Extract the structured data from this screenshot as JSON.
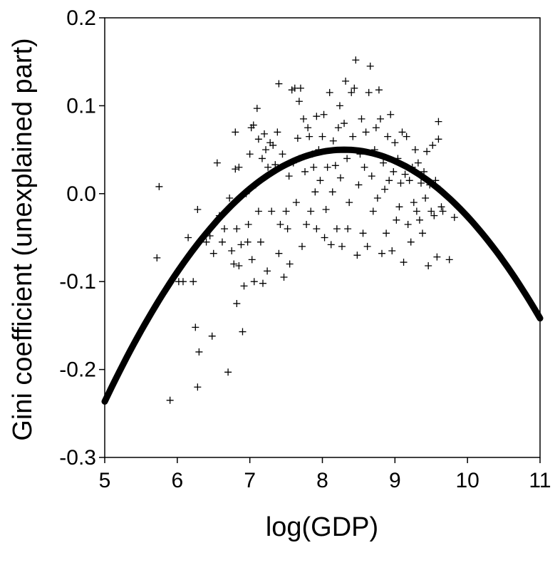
{
  "chart_data": {
    "type": "scatter",
    "xlabel": "log(GDP)",
    "ylabel": "Gini coefficient (unexplained part)",
    "xlim": [
      5,
      11
    ],
    "ylim": [
      -0.3,
      0.2
    ],
    "x_ticks": [
      5,
      6,
      7,
      8,
      9,
      10,
      11
    ],
    "y_ticks": [
      0.2,
      0.1,
      0.0,
      -0.1,
      -0.2,
      -0.3
    ],
    "x_tick_labels": [
      "5",
      "6",
      "7",
      "8",
      "9",
      "10",
      "11"
    ],
    "y_tick_labels": [
      "0.2",
      "0.1",
      "0.0",
      "-0.1",
      "-0.2",
      "-0.3"
    ],
    "grid": false,
    "legend": "none",
    "fit_curve": {
      "type": "quadratic",
      "vertex_x": 8.3,
      "vertex_y": 0.05,
      "a": -0.0263,
      "color": "#000000"
    },
    "series": [
      {
        "marker": "+",
        "points": [
          [
            5.75,
            0.008
          ],
          [
            5.72,
            -0.073
          ],
          [
            5.9,
            -0.235
          ],
          [
            6.02,
            -0.1
          ],
          [
            6.08,
            -0.1
          ],
          [
            6.15,
            -0.05
          ],
          [
            6.22,
            -0.1
          ],
          [
            6.25,
            -0.152
          ],
          [
            6.28,
            -0.018
          ],
          [
            6.3,
            -0.18
          ],
          [
            6.28,
            -0.22
          ],
          [
            6.4,
            -0.055
          ],
          [
            6.45,
            -0.048
          ],
          [
            6.5,
            -0.068
          ],
          [
            6.48,
            -0.162
          ],
          [
            6.55,
            0.035
          ],
          [
            6.58,
            -0.025
          ],
          [
            6.62,
            -0.055
          ],
          [
            6.65,
            -0.04
          ],
          [
            6.7,
            -0.203
          ],
          [
            6.72,
            -0.005
          ],
          [
            6.75,
            -0.065
          ],
          [
            6.78,
            -0.08
          ],
          [
            6.8,
            0.028
          ],
          [
            6.8,
            0.07
          ],
          [
            6.82,
            -0.125
          ],
          [
            6.82,
            -0.04
          ],
          [
            6.85,
            0.03
          ],
          [
            6.85,
            -0.082
          ],
          [
            6.88,
            -0.058
          ],
          [
            6.9,
            -0.157
          ],
          [
            6.92,
            -0.105
          ],
          [
            6.95,
            0.0
          ],
          [
            6.97,
            -0.055
          ],
          [
            6.98,
            -0.035
          ],
          [
            7.0,
            0.045
          ],
          [
            7.02,
            0.075
          ],
          [
            7.03,
            -0.075
          ],
          [
            7.05,
            0.078
          ],
          [
            7.06,
            -0.1
          ],
          [
            7.08,
            0.01
          ],
          [
            7.1,
            0.097
          ],
          [
            7.12,
            0.062
          ],
          [
            7.12,
            -0.02
          ],
          [
            7.15,
            -0.055
          ],
          [
            7.17,
            0.04
          ],
          [
            7.18,
            -0.102
          ],
          [
            7.2,
            0.068
          ],
          [
            7.22,
            0.05
          ],
          [
            7.24,
            -0.088
          ],
          [
            7.25,
            0.03
          ],
          [
            7.28,
            0.058
          ],
          [
            7.3,
            -0.02
          ],
          [
            7.32,
            0.055
          ],
          [
            7.35,
            0.033
          ],
          [
            7.38,
            0.07
          ],
          [
            7.4,
            -0.068
          ],
          [
            7.4,
            0.125
          ],
          [
            7.42,
            -0.035
          ],
          [
            7.45,
            0.045
          ],
          [
            7.47,
            -0.095
          ],
          [
            7.5,
            -0.02
          ],
          [
            7.52,
            -0.04
          ],
          [
            7.54,
            0.02
          ],
          [
            7.55,
            -0.08
          ],
          [
            7.58,
            0.118
          ],
          [
            7.6,
            0.035
          ],
          [
            7.62,
            0.12
          ],
          [
            7.64,
            -0.01
          ],
          [
            7.66,
            0.063
          ],
          [
            7.68,
            0.105
          ],
          [
            7.68,
            0.04
          ],
          [
            7.7,
            0.12
          ],
          [
            7.72,
            -0.06
          ],
          [
            7.74,
            0.085
          ],
          [
            7.76,
            0.025
          ],
          [
            7.78,
            -0.035
          ],
          [
            7.8,
            0.075
          ],
          [
            7.82,
            0.065
          ],
          [
            7.84,
            -0.02
          ],
          [
            7.86,
            0.045
          ],
          [
            7.88,
            0.03
          ],
          [
            7.9,
            0.002
          ],
          [
            7.92,
            0.088
          ],
          [
            7.92,
            -0.04
          ],
          [
            7.95,
            0.05
          ],
          [
            7.97,
            0.015
          ],
          [
            8.0,
            0.065
          ],
          [
            8.02,
            0.09
          ],
          [
            8.03,
            -0.05
          ],
          [
            8.05,
            -0.018
          ],
          [
            8.07,
            0.03
          ],
          [
            8.1,
            0.115
          ],
          [
            8.12,
            -0.058
          ],
          [
            8.14,
            0.002
          ],
          [
            8.15,
            0.06
          ],
          [
            8.18,
            0.032
          ],
          [
            8.2,
            -0.04
          ],
          [
            8.22,
            0.075
          ],
          [
            8.24,
            0.1
          ],
          [
            8.25,
            0.018
          ],
          [
            8.27,
            -0.06
          ],
          [
            8.3,
            0.08
          ],
          [
            8.32,
            0.128
          ],
          [
            8.34,
            0.04
          ],
          [
            8.35,
            -0.04
          ],
          [
            8.37,
            -0.01
          ],
          [
            8.4,
            0.115
          ],
          [
            8.42,
            0.065
          ],
          [
            8.44,
            0.12
          ],
          [
            8.46,
            0.152
          ],
          [
            8.48,
            -0.07
          ],
          [
            8.5,
            0.01
          ],
          [
            8.52,
            0.045
          ],
          [
            8.54,
            0.085
          ],
          [
            8.56,
            -0.045
          ],
          [
            8.58,
            0.03
          ],
          [
            8.6,
            0.07
          ],
          [
            8.62,
            -0.06
          ],
          [
            8.64,
            0.115
          ],
          [
            8.66,
            0.145
          ],
          [
            8.68,
            0.02
          ],
          [
            8.7,
            -0.02
          ],
          [
            8.72,
            0.05
          ],
          [
            8.74,
            0.075
          ],
          [
            8.76,
            -0.005
          ],
          [
            8.78,
            0.118
          ],
          [
            8.8,
            0.085
          ],
          [
            8.82,
            -0.068
          ],
          [
            8.84,
            0.035
          ],
          [
            8.86,
            0.005
          ],
          [
            8.88,
            -0.045
          ],
          [
            8.9,
            0.065
          ],
          [
            8.92,
            0.015
          ],
          [
            8.94,
            0.09
          ],
          [
            8.96,
            -0.065
          ],
          [
            8.98,
            0.025
          ],
          [
            9.0,
            0.058
          ],
          [
            9.02,
            -0.03
          ],
          [
            9.04,
            0.04
          ],
          [
            9.06,
            -0.015
          ],
          [
            9.08,
            0.012
          ],
          [
            9.1,
            0.07
          ],
          [
            9.12,
            -0.078
          ],
          [
            9.14,
            0.022
          ],
          [
            9.16,
            0.065
          ],
          [
            9.18,
            -0.035
          ],
          [
            9.2,
            0.015
          ],
          [
            9.22,
            -0.055
          ],
          [
            9.24,
            0.03
          ],
          [
            9.26,
            -0.01
          ],
          [
            9.28,
            0.05
          ],
          [
            9.3,
            -0.02
          ],
          [
            9.32,
            0.035
          ],
          [
            9.34,
            -0.03
          ],
          [
            9.36,
            0.012
          ],
          [
            9.38,
            -0.045
          ],
          [
            9.4,
            0.025
          ],
          [
            9.42,
            -0.005
          ],
          [
            9.44,
            0.048
          ],
          [
            9.46,
            -0.082
          ],
          [
            9.48,
            0.01
          ],
          [
            9.5,
            -0.02
          ],
          [
            9.52,
            0.055
          ],
          [
            9.54,
            -0.025
          ],
          [
            9.56,
            0.015
          ],
          [
            9.58,
            -0.072
          ],
          [
            9.6,
            0.062
          ],
          [
            9.6,
            0.082
          ],
          [
            9.62,
            0.005
          ],
          [
            9.64,
            -0.015
          ],
          [
            9.66,
            -0.02
          ],
          [
            9.75,
            -0.075
          ],
          [
            9.82,
            -0.027
          ]
        ]
      }
    ]
  }
}
